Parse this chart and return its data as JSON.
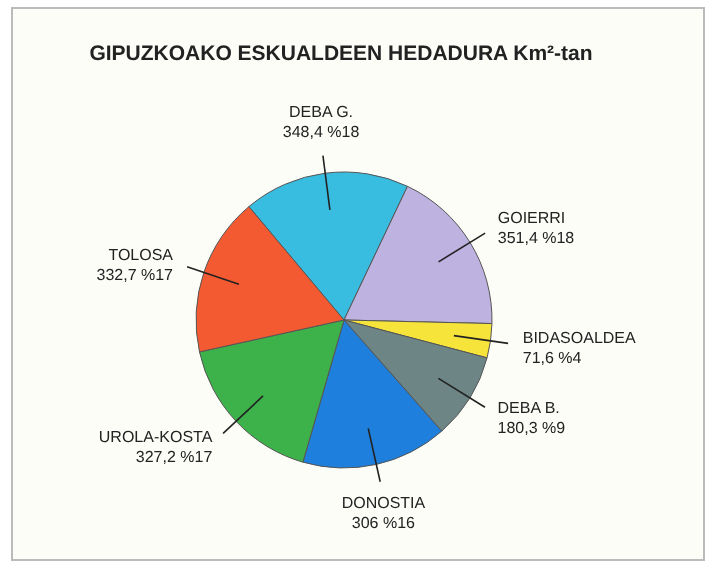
{
  "chart_data": {
    "type": "pie",
    "title": "GIPUZKOAKO ESKUALDEEN HEDADURA Km²-tan",
    "categories": [
      "DEBA G.",
      "GOIERRI",
      "BIDASOALDEA",
      "DEBA B.",
      "DONOSTIA",
      "UROLA-KOSTA",
      "TOLOSA"
    ],
    "values": [
      348.4,
      351.4,
      71.6,
      180.3,
      306,
      327.2,
      332.7
    ],
    "value_labels": [
      "348,4 %18",
      "351,4 %18",
      "71,6 %4",
      "180,3 %9",
      "306 %16",
      "327,2 %17",
      "332,7 %17"
    ],
    "colors": [
      "#38bde0",
      "#bdb2e0",
      "#f7e43a",
      "#6e8585",
      "#1f7fdc",
      "#3db24a",
      "#f45a32"
    ],
    "legend": false
  }
}
